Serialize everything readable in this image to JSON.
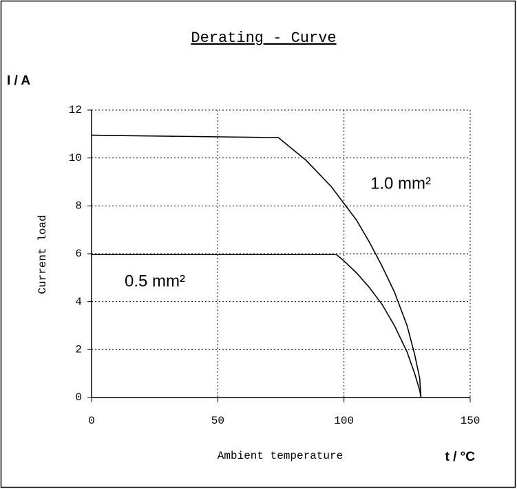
{
  "chart_data": {
    "type": "line",
    "title": "Derating - Curve",
    "y_unit_label": "I / A",
    "x_unit_label": "t / °C",
    "xlabel": "Ambient temperature",
    "ylabel": "Current load",
    "xlim": [
      0,
      150
    ],
    "xticks": [
      0,
      50,
      100,
      150
    ],
    "ylim": [
      0,
      12
    ],
    "yticks": [
      0,
      2,
      4,
      6,
      8,
      10,
      12
    ],
    "grid": true,
    "annotations": [
      "1.0 mm²",
      "0.5 mm²"
    ],
    "series": [
      {
        "name": "1.0 mm²",
        "color": "#000000",
        "x": [
          0,
          74,
          85,
          95,
          100,
          105,
          110,
          115,
          120,
          125,
          128,
          130,
          130.5
        ],
        "values": [
          10.95,
          10.85,
          9.9,
          8.8,
          8.1,
          7.4,
          6.5,
          5.5,
          4.4,
          3.0,
          1.8,
          0.8,
          0
        ]
      },
      {
        "name": "0.5 mm²",
        "color": "#000000",
        "x": [
          0,
          97,
          100,
          105,
          110,
          115,
          120,
          125,
          128,
          130,
          130.5
        ],
        "values": [
          5.97,
          5.97,
          5.7,
          5.2,
          4.6,
          3.9,
          3.0,
          1.9,
          1.0,
          0.3,
          0
        ]
      }
    ]
  }
}
